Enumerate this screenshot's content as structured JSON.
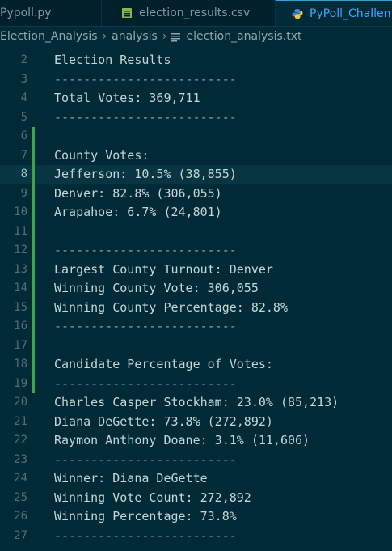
{
  "tabs": [
    {
      "label": "Pypoll.py",
      "icon": "python-file-icon",
      "active": false
    },
    {
      "label": "election_results.csv",
      "icon": "csv-file-icon",
      "active": false
    },
    {
      "label": "PyPoll_Challen",
      "icon": "python-file-icon",
      "active": true
    }
  ],
  "breadcrumb": {
    "folder1": "Election_Analysis",
    "folder2": "analysis",
    "file": "election_analysis.txt"
  },
  "editor": {
    "current_line": 8,
    "lines": [
      {
        "num": "2",
        "text": "Election Results"
      },
      {
        "num": "3",
        "text": "-------------------------"
      },
      {
        "num": "4",
        "text": "Total Votes: 369,711"
      },
      {
        "num": "5",
        "text": "-------------------------"
      },
      {
        "num": "6",
        "text": ""
      },
      {
        "num": "7",
        "text": "County Votes:"
      },
      {
        "num": "8",
        "text": "Jefferson: 10.5% (38,855)"
      },
      {
        "num": "9",
        "text": "Denver: 82.8% (306,055)"
      },
      {
        "num": "10",
        "text": "Arapahoe: 6.7% (24,801)"
      },
      {
        "num": "11",
        "text": ""
      },
      {
        "num": "12",
        "text": "-------------------------"
      },
      {
        "num": "13",
        "text": "Largest County Turnout: Denver"
      },
      {
        "num": "14",
        "text": "Winning County Vote: 306,055"
      },
      {
        "num": "15",
        "text": "Winning County Percentage: 82.8%"
      },
      {
        "num": "16",
        "text": "-------------------------"
      },
      {
        "num": "17",
        "text": ""
      },
      {
        "num": "18",
        "text": "Candidate Percentage of Votes:"
      },
      {
        "num": "19",
        "text": "-------------------------"
      },
      {
        "num": "20",
        "text": "Charles Casper Stockham: 23.0% (85,213)"
      },
      {
        "num": "21",
        "text": "Diana DeGette: 73.8% (272,892)"
      },
      {
        "num": "22",
        "text": "Raymon Anthony Doane: 3.1% (11,606)"
      },
      {
        "num": "23",
        "text": "-------------------------"
      },
      {
        "num": "24",
        "text": "Winner: Diana DeGette"
      },
      {
        "num": "25",
        "text": "Winning Vote Count: 272,892"
      },
      {
        "num": "26",
        "text": "Winning Percentage: 73.8%"
      },
      {
        "num": "27",
        "text": "-------------------------"
      }
    ]
  },
  "colors": {
    "editor_background": "#002b36",
    "tabbar_background": "#00212b",
    "current_line_background": "#073642",
    "active_tab_text": "#3ea6ff",
    "modified_gutter": "#42a24a"
  }
}
